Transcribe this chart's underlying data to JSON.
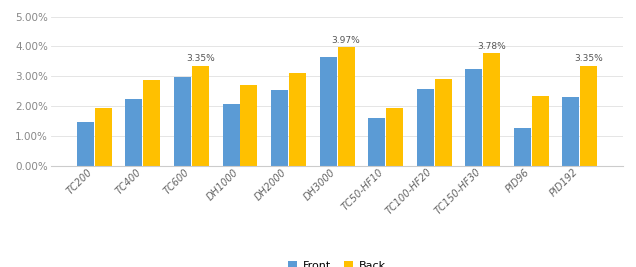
{
  "categories": [
    "TC200",
    "TC400",
    "TC600",
    "DH1000",
    "DH2000",
    "DH3000",
    "TC50-HF10",
    "TC100-HF20",
    "TC150-HF30",
    "PID96",
    "PID192"
  ],
  "front": [
    0.0147,
    0.0225,
    0.0297,
    0.0208,
    0.0252,
    0.0365,
    0.0158,
    0.0258,
    0.0325,
    0.0125,
    0.023
  ],
  "back": [
    0.0192,
    0.0287,
    0.0335,
    0.027,
    0.0312,
    0.0397,
    0.0192,
    0.029,
    0.0378,
    0.0233,
    0.0335
  ],
  "front_color": "#5B9BD5",
  "back_color": "#FFC000",
  "annot_indices": [
    2,
    5,
    8,
    10
  ],
  "annot_labels": [
    "3.35%",
    "3.97%",
    "3.78%",
    "3.35%"
  ],
  "ylim": [
    0,
    0.052
  ],
  "yticks": [
    0.0,
    0.01,
    0.02,
    0.03,
    0.04,
    0.05
  ],
  "legend_labels": [
    "Front",
    "Back"
  ],
  "bar_width": 0.35,
  "bar_gap": 0.02
}
